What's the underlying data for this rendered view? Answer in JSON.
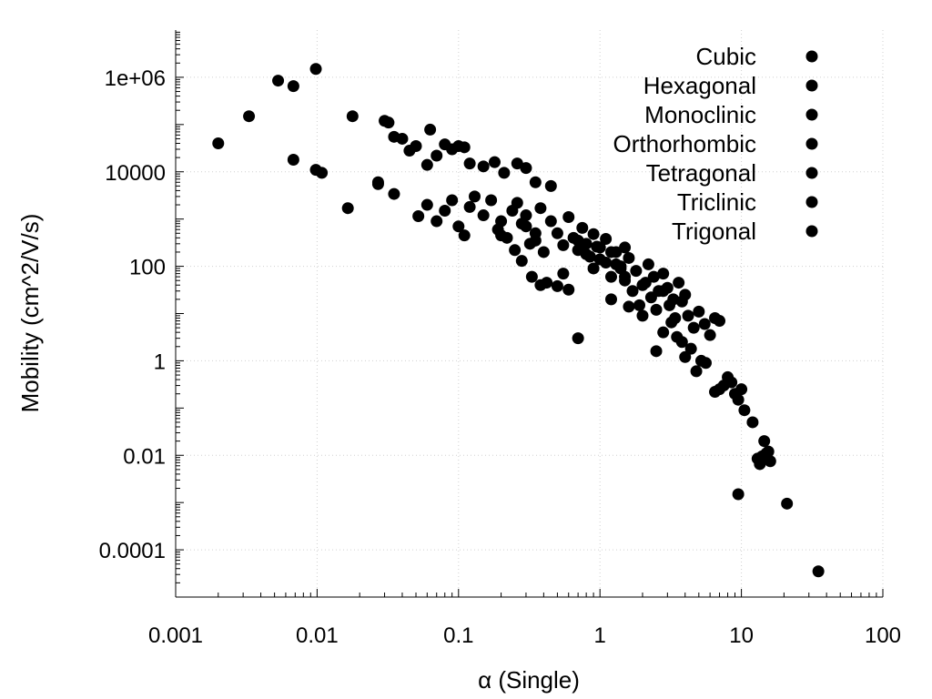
{
  "chart_data": {
    "type": "scatter",
    "xlabel": "α (Single)",
    "ylabel": "Mobility (cm^2/V/s)",
    "x_scale": "log",
    "y_scale": "log",
    "xlim": [
      0.001,
      100
    ],
    "ylim": [
      1e-05,
      10000000
    ],
    "x_ticks": [
      {
        "value": 0.001,
        "label": "0.001"
      },
      {
        "value": 0.01,
        "label": "0.01"
      },
      {
        "value": 0.1,
        "label": "0.1"
      },
      {
        "value": 1,
        "label": "1"
      },
      {
        "value": 10,
        "label": "10"
      },
      {
        "value": 100,
        "label": "100"
      }
    ],
    "y_ticks": [
      {
        "value": 0.0001,
        "label": "0.0001"
      },
      {
        "value": 0.01,
        "label": "0.01"
      },
      {
        "value": 1,
        "label": "1"
      },
      {
        "value": 100,
        "label": "100"
      },
      {
        "value": 10000,
        "label": "10000"
      },
      {
        "value": 1000000,
        "label": "1e+06"
      }
    ],
    "grid": true,
    "legend_position": "top-right",
    "marker_color": "#000000",
    "series": [
      {
        "name": "Cubic",
        "points": [
          [
            0.002,
            40000
          ],
          [
            0.0033,
            150000
          ],
          [
            0.0053,
            850000
          ],
          [
            0.0068,
            650000
          ],
          [
            0.0098,
            1500000
          ],
          [
            0.0068,
            18000
          ],
          [
            0.0098,
            11000
          ],
          [
            0.0108,
            9500
          ],
          [
            0.0165,
            1700
          ],
          [
            0.0178,
            150000
          ],
          [
            0.027,
            5500
          ],
          [
            0.027,
            6000
          ],
          [
            0.03,
            120000
          ],
          [
            0.032,
            110000
          ],
          [
            0.035,
            55000
          ],
          [
            0.035,
            3400
          ],
          [
            0.04,
            50000
          ],
          [
            0.045,
            28000
          ],
          [
            0.05,
            35000
          ],
          [
            0.052,
            1150
          ],
          [
            0.06,
            14000
          ],
          [
            0.063,
            78000
          ],
          [
            0.07,
            22000
          ],
          [
            0.08,
            38000
          ],
          [
            0.09,
            30000
          ],
          [
            0.1,
            35000
          ],
          [
            0.11,
            33000
          ],
          [
            0.12,
            15000
          ],
          [
            0.15,
            13000
          ],
          [
            0.18,
            16000
          ],
          [
            0.21,
            9500
          ],
          [
            0.26,
            15000
          ],
          [
            0.3,
            12000
          ],
          [
            0.35,
            6000
          ],
          [
            0.45,
            5000
          ]
        ]
      },
      {
        "name": "Hexagonal",
        "points": [
          [
            0.06,
            2000
          ],
          [
            0.07,
            900
          ],
          [
            0.08,
            1500
          ],
          [
            0.09,
            2500
          ],
          [
            0.1,
            700
          ],
          [
            0.11,
            450
          ],
          [
            0.12,
            1800
          ],
          [
            0.13,
            3000
          ],
          [
            0.15,
            1200
          ],
          [
            0.17,
            2500
          ],
          [
            0.19,
            600
          ],
          [
            0.2,
            900
          ],
          [
            0.22,
            400
          ],
          [
            0.24,
            1500
          ],
          [
            0.26,
            2200
          ],
          [
            0.28,
            800
          ],
          [
            0.3,
            1200
          ],
          [
            0.32,
            300
          ],
          [
            0.35,
            500
          ],
          [
            0.38,
            1700
          ]
        ]
      },
      {
        "name": "Monoclinic",
        "points": [
          [
            0.3,
            700
          ],
          [
            0.35,
            350
          ],
          [
            0.4,
            200
          ],
          [
            0.45,
            900
          ],
          [
            0.5,
            500
          ],
          [
            0.55,
            280
          ],
          [
            0.6,
            1100
          ],
          [
            0.65,
            400
          ],
          [
            0.7,
            220
          ],
          [
            0.75,
            650
          ],
          [
            0.8,
            300
          ],
          [
            0.85,
            160
          ],
          [
            0.9,
            480
          ],
          [
            0.95,
            260
          ],
          [
            1.0,
            140
          ],
          [
            1.1,
            380
          ],
          [
            1.2,
            200
          ],
          [
            1.3,
            110
          ],
          [
            1.4,
            90
          ],
          [
            1.5,
            250
          ]
        ]
      },
      {
        "name": "Orthorhombic",
        "points": [
          [
            0.7,
            350
          ],
          [
            0.8,
            180
          ],
          [
            0.9,
            90
          ],
          [
            1.0,
            250
          ],
          [
            1.1,
            120
          ],
          [
            1.2,
            60
          ],
          [
            1.3,
            200
          ],
          [
            1.4,
            100
          ],
          [
            1.5,
            50
          ],
          [
            1.6,
            150
          ],
          [
            1.8,
            80
          ],
          [
            2.0,
            40
          ],
          [
            2.2,
            110
          ],
          [
            2.4,
            60
          ],
          [
            2.6,
            30
          ],
          [
            2.8,
            70
          ],
          [
            3.0,
            35
          ],
          [
            3.3,
            20
          ],
          [
            3.6,
            45
          ],
          [
            4.0,
            25
          ]
        ]
      },
      {
        "name": "Tetragonal",
        "points": [
          [
            1.5,
            60
          ],
          [
            1.7,
            30
          ],
          [
            1.9,
            15
          ],
          [
            2.1,
            45
          ],
          [
            2.3,
            22
          ],
          [
            2.5,
            12
          ],
          [
            2.8,
            30
          ],
          [
            3.1,
            15
          ],
          [
            3.4,
            8
          ],
          [
            3.8,
            18
          ],
          [
            4.2,
            9
          ],
          [
            4.6,
            5
          ],
          [
            5.0,
            11
          ],
          [
            5.5,
            6
          ],
          [
            6.0,
            3.5
          ],
          [
            6.5,
            8
          ],
          [
            7.0,
            7
          ],
          [
            4.8,
            0.6
          ],
          [
            5.2,
            1.0
          ],
          [
            5.6,
            0.9
          ]
        ]
      },
      {
        "name": "Triclinic",
        "points": [
          [
            0.2,
            450
          ],
          [
            0.25,
            220
          ],
          [
            0.28,
            130
          ],
          [
            0.33,
            60
          ],
          [
            0.38,
            40
          ],
          [
            0.42,
            45
          ],
          [
            0.5,
            38
          ],
          [
            0.55,
            70
          ],
          [
            0.6,
            32
          ],
          [
            0.7,
            3.0
          ],
          [
            1.2,
            20
          ],
          [
            1.6,
            14
          ],
          [
            2.0,
            9
          ],
          [
            2.5,
            1.6
          ],
          [
            3.2,
            6.5
          ],
          [
            3.8,
            2.5
          ],
          [
            4.4,
            1.8
          ],
          [
            2.8,
            4.0
          ],
          [
            3.5,
            3.2
          ],
          [
            4.0,
            1.2
          ]
        ]
      },
      {
        "name": "Trigonal",
        "points": [
          [
            6.5,
            0.22
          ],
          [
            7.0,
            0.25
          ],
          [
            7.5,
            0.3
          ],
          [
            8.0,
            0.45
          ],
          [
            8.5,
            0.35
          ],
          [
            9.0,
            0.2
          ],
          [
            9.5,
            0.15
          ],
          [
            10.0,
            0.25
          ],
          [
            10.5,
            0.09
          ],
          [
            9.5,
            0.0015
          ],
          [
            13.0,
            0.0085
          ],
          [
            14.0,
            0.0095
          ],
          [
            15.0,
            0.011
          ],
          [
            16.0,
            0.0075
          ],
          [
            14.5,
            0.02
          ],
          [
            15.5,
            0.012
          ],
          [
            13.5,
            0.0065
          ],
          [
            21.0,
            0.00095
          ],
          [
            35.0,
            3.5e-05
          ],
          [
            12.0,
            0.05
          ]
        ]
      }
    ]
  }
}
